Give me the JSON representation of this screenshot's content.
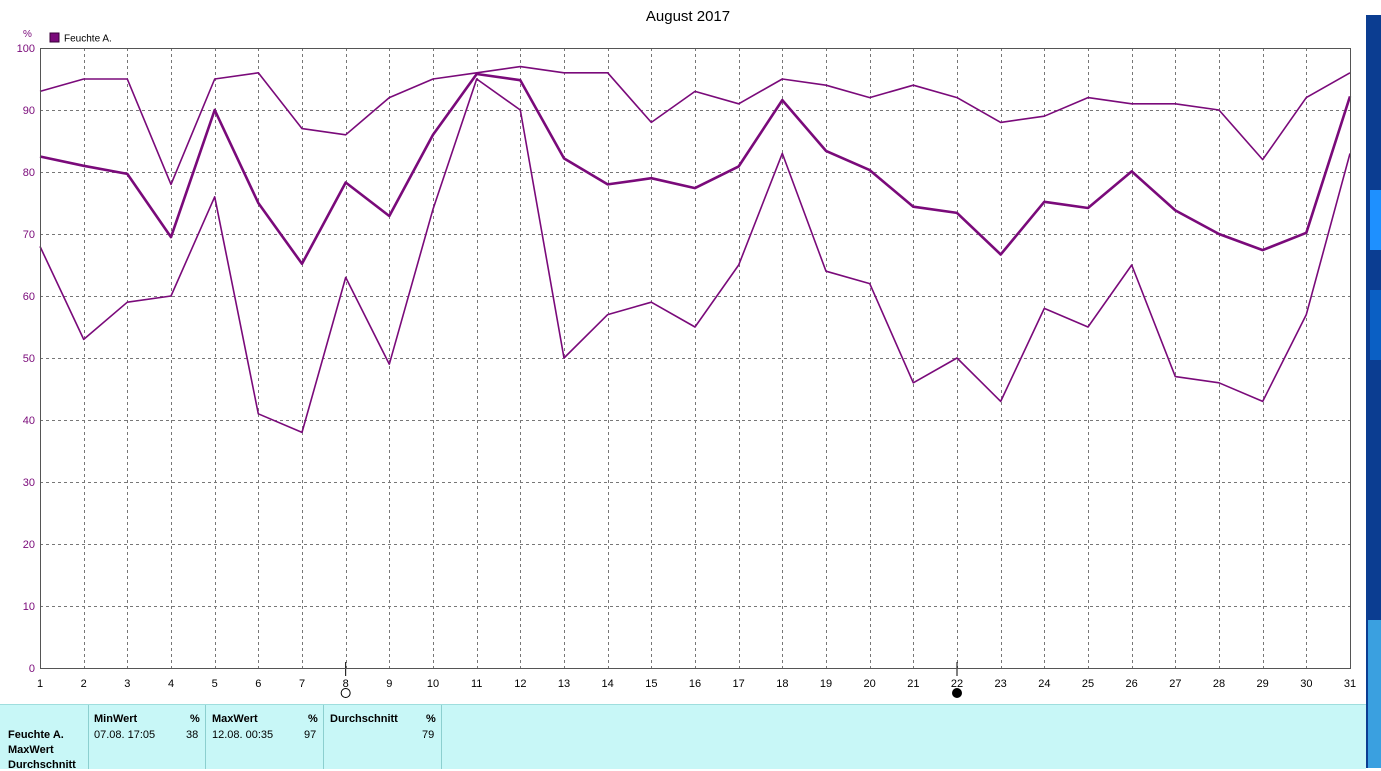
{
  "chart_data": {
    "type": "line",
    "title": "August 2017",
    "ylabel": "%",
    "ylim": [
      0,
      100
    ],
    "yticks": [
      0,
      10,
      20,
      30,
      40,
      50,
      60,
      70,
      80,
      90,
      100
    ],
    "x": [
      1,
      2,
      3,
      4,
      5,
      6,
      7,
      8,
      9,
      10,
      11,
      12,
      13,
      14,
      15,
      16,
      17,
      18,
      19,
      20,
      21,
      22,
      23,
      24,
      25,
      26,
      27,
      28,
      29,
      30,
      31
    ],
    "legend": "Feuchte A.",
    "color": "#7a0a7a",
    "series": [
      {
        "values": [
          93,
          95,
          95,
          78,
          95,
          96,
          87,
          86,
          92,
          95,
          96,
          97,
          96,
          96,
          88,
          93,
          91,
          95,
          94,
          92,
          94,
          92,
          88,
          89,
          92,
          91,
          91,
          90,
          82,
          92,
          96
        ]
      },
      {
        "values": [
          82.5,
          81,
          79.7,
          69.5,
          90,
          75,
          65.2,
          78.3,
          72.9,
          86,
          95.8,
          94.8,
          82.2,
          78,
          79,
          77.4,
          80.9,
          91.6,
          83.4,
          80.3,
          74.4,
          73.4,
          66.7,
          75.2,
          74.2,
          80.1,
          73.8,
          70,
          67.4,
          70.2,
          92.2
        ]
      },
      {
        "values": [
          68,
          53,
          59,
          60,
          76,
          41,
          38,
          63,
          49,
          74,
          95,
          90,
          50,
          57,
          59,
          55,
          65,
          83,
          64,
          62,
          46,
          50,
          43,
          58,
          55,
          65,
          47,
          46,
          43,
          57,
          83
        ]
      }
    ],
    "moon_markers": [
      {
        "x": 8,
        "phase": "full"
      },
      {
        "x": 22,
        "phase": "new"
      }
    ]
  },
  "stats": {
    "series_label": "Feuchte A.",
    "row_labels": [
      "MaxWert",
      "Durchschnitt"
    ],
    "min": {
      "header": "MinWert",
      "unit": "%",
      "time": "07.08.  17:05",
      "value": "38"
    },
    "max": {
      "header": "MaxWert",
      "unit": "%",
      "time": "12.08.  00:35",
      "value": "97"
    },
    "avg": {
      "header": "Durchschnitt",
      "unit": "%",
      "value": "79"
    }
  }
}
